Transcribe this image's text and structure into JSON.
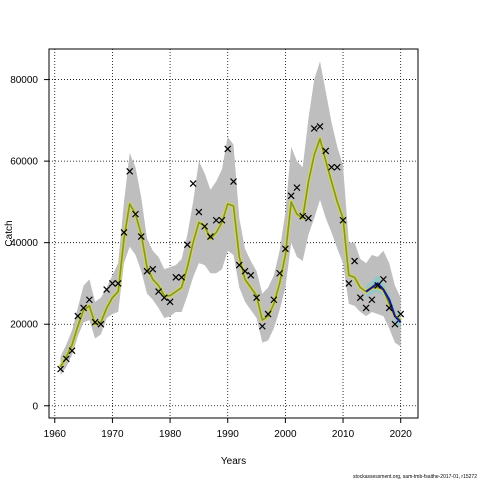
{
  "chart_data": {
    "type": "line",
    "title": "",
    "xlabel": "Years",
    "ylabel": "Catch",
    "xlim": [
      1959,
      2023
    ],
    "ylim": [
      -3000,
      87500
    ],
    "x_ticks": [
      1960,
      1970,
      1980,
      1990,
      2000,
      2010,
      2020
    ],
    "y_ticks": [
      0,
      20000,
      40000,
      60000,
      80000
    ],
    "grid": true,
    "footnote": "stockassessment.org, sam-tmb-fsaithe-2017-01, r15272",
    "series": [
      {
        "name": "",
        "kind": "estimate-with-band",
        "color": "#7a9a2a",
        "band_color": "#bebebe",
        "x": [
          1961,
          1962,
          1963,
          1964,
          1965,
          1966,
          1967,
          1968,
          1969,
          1970,
          1971,
          1972,
          1973,
          1974,
          1975,
          1976,
          1977,
          1978,
          1979,
          1980,
          1981,
          1982,
          1983,
          1984,
          1985,
          1986,
          1987,
          1988,
          1989,
          1990,
          1991,
          1992,
          1993,
          1994,
          1995,
          1996,
          1997,
          1998,
          1999,
          2000,
          2001,
          2002,
          2003,
          2004,
          2005,
          2006,
          2007,
          2008,
          2009,
          2010,
          2011,
          2012,
          2013,
          2014,
          2015,
          2016,
          2017,
          2018,
          2019,
          2020
        ],
        "y": [
          9500,
          12000,
          15000,
          19500,
          23500,
          24500,
          20000,
          20500,
          24000,
          26500,
          28000,
          41000,
          49500,
          47000,
          42000,
          34000,
          31000,
          29500,
          27000,
          27000,
          28000,
          29000,
          34000,
          40000,
          45000,
          44000,
          41000,
          42500,
          45000,
          49500,
          49000,
          36500,
          31000,
          29000,
          27000,
          21000,
          22000,
          25000,
          30000,
          37000,
          50000,
          47000,
          46000,
          55000,
          61500,
          65500,
          60000,
          55000,
          50000,
          46000,
          32000,
          31500,
          29000,
          28000,
          29000,
          29000,
          28500,
          25000,
          22000,
          21000
        ],
        "lower": [
          7500,
          9500,
          12500,
          17000,
          20500,
          21000,
          16500,
          17500,
          21500,
          22500,
          23000,
          35000,
          39000,
          37000,
          33000,
          27500,
          26000,
          24000,
          21500,
          22000,
          23000,
          23000,
          27000,
          31500,
          35000,
          34500,
          32500,
          32500,
          33500,
          38000,
          37000,
          29000,
          25500,
          23500,
          21500,
          15500,
          16000,
          19000,
          23500,
          29000,
          40000,
          36500,
          35500,
          42000,
          46000,
          50500,
          46000,
          42500,
          38500,
          35000,
          25000,
          24500,
          23000,
          22000,
          23000,
          22500,
          22000,
          19000,
          15500,
          14500
        ],
        "upper": [
          12000,
          15000,
          18500,
          24000,
          29500,
          31000,
          25500,
          26500,
          29000,
          32000,
          35000,
          50000,
          62000,
          58500,
          51000,
          41000,
          38000,
          36500,
          33500,
          34000,
          34500,
          36000,
          42000,
          50000,
          60000,
          57000,
          53000,
          55000,
          58000,
          66000,
          64000,
          46000,
          38500,
          35500,
          33000,
          27500,
          29000,
          32000,
          38000,
          47500,
          63500,
          60000,
          58500,
          70500,
          80000,
          84500,
          77000,
          69500,
          63500,
          59000,
          40000,
          40000,
          36000,
          35000,
          37000,
          36500,
          38000,
          35000,
          29500,
          26500
        ]
      },
      {
        "name": "",
        "kind": "recent-estimate",
        "color": "#1a1a8c",
        "band_color": "#8ec9c9",
        "x": [
          2014,
          2015,
          2016,
          2017,
          2018,
          2019,
          2020
        ],
        "y": [
          28000,
          29000,
          30000,
          28500,
          26000,
          22000,
          20500
        ],
        "lower": [
          26500,
          27500,
          28000,
          27000,
          24500,
          20500,
          19000
        ],
        "upper": [
          29500,
          30500,
          32000,
          30000,
          27500,
          23500,
          22000
        ]
      },
      {
        "name": "",
        "kind": "observed",
        "marker": "x",
        "color": "#000000",
        "x": [
          1961,
          1962,
          1963,
          1964,
          1965,
          1966,
          1967,
          1968,
          1969,
          1970,
          1971,
          1972,
          1973,
          1974,
          1975,
          1976,
          1977,
          1978,
          1979,
          1980,
          1981,
          1982,
          1983,
          1984,
          1985,
          1986,
          1987,
          1988,
          1989,
          1990,
          1991,
          1992,
          1993,
          1994,
          1995,
          1996,
          1997,
          1998,
          1999,
          2000,
          2001,
          2002,
          2003,
          2004,
          2005,
          2006,
          2007,
          2008,
          2009,
          2010,
          2011,
          2012,
          2013,
          2014,
          2015,
          2016,
          2017,
          2018,
          2019,
          2020
        ],
        "y": [
          9000,
          11500,
          13500,
          22000,
          24000,
          26000,
          20500,
          20000,
          28500,
          30000,
          30000,
          42500,
          57500,
          47000,
          41500,
          33000,
          33500,
          28000,
          26500,
          25500,
          31500,
          31500,
          39500,
          54500,
          47500,
          44000,
          41500,
          45500,
          45500,
          63000,
          55000,
          34500,
          33000,
          32000,
          26500,
          19500,
          22500,
          26000,
          32500,
          38500,
          51500,
          53500,
          46500,
          46000,
          68000,
          68500,
          62500,
          58500,
          58500,
          45500,
          30000,
          35500,
          26500,
          24000,
          26000,
          29500,
          31000,
          24000,
          20000,
          22500
        ]
      }
    ]
  }
}
